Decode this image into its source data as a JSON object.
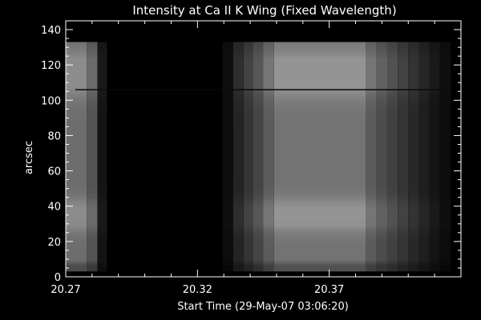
{
  "chart_data": {
    "type": "heatmap",
    "title": "Intensity at Ca II K Wing (Fixed Wavelength)",
    "xlabel": "Start Time (29-May-07 03:06:20)",
    "ylabel": "arcsec",
    "xlim": [
      20.27,
      20.42
    ],
    "ylim": [
      0,
      145
    ],
    "xticks": [
      {
        "value": 20.27,
        "label": "20.27"
      },
      {
        "value": 20.32,
        "label": "20.32"
      },
      {
        "value": 20.37,
        "label": "20.37"
      }
    ],
    "yticks": [
      {
        "value": 0,
        "label": "0"
      },
      {
        "value": 20,
        "label": "20"
      },
      {
        "value": 40,
        "label": "40"
      },
      {
        "value": 60,
        "label": "60"
      },
      {
        "value": 80,
        "label": "80"
      },
      {
        "value": 100,
        "label": "100"
      },
      {
        "value": 120,
        "label": "120"
      },
      {
        "value": 140,
        "label": "140"
      }
    ],
    "colormap": "grayscale",
    "grid": false,
    "data_extent_y": [
      3,
      133
    ],
    "dark_line_y": 106,
    "segments": [
      {
        "x0": 20.27,
        "x1": 20.278,
        "level": 0.55
      },
      {
        "x0": 20.278,
        "x1": 20.282,
        "level": 0.42
      },
      {
        "x0": 20.282,
        "x1": 20.2855,
        "level": 0.1
      },
      {
        "x0": 20.3295,
        "x1": 20.3335,
        "level": 0.06
      },
      {
        "x0": 20.3335,
        "x1": 20.3375,
        "level": 0.18
      },
      {
        "x0": 20.3375,
        "x1": 20.341,
        "level": 0.26
      },
      {
        "x0": 20.341,
        "x1": 20.345,
        "level": 0.34
      },
      {
        "x0": 20.345,
        "x1": 20.349,
        "level": 0.46
      },
      {
        "x0": 20.349,
        "x1": 20.384,
        "level": 0.58
      },
      {
        "x0": 20.384,
        "x1": 20.388,
        "level": 0.46
      },
      {
        "x0": 20.388,
        "x1": 20.392,
        "level": 0.38
      },
      {
        "x0": 20.392,
        "x1": 20.396,
        "level": 0.32
      },
      {
        "x0": 20.396,
        "x1": 20.4,
        "level": 0.26
      },
      {
        "x0": 20.4,
        "x1": 20.404,
        "level": 0.2
      },
      {
        "x0": 20.404,
        "x1": 20.408,
        "level": 0.15
      },
      {
        "x0": 20.408,
        "x1": 20.412,
        "level": 0.1
      },
      {
        "x0": 20.412,
        "x1": 20.416,
        "level": 0.06
      }
    ],
    "bright_bands": [
      {
        "y": 35,
        "width": 8
      },
      {
        "y": 115,
        "width": 12
      }
    ]
  }
}
